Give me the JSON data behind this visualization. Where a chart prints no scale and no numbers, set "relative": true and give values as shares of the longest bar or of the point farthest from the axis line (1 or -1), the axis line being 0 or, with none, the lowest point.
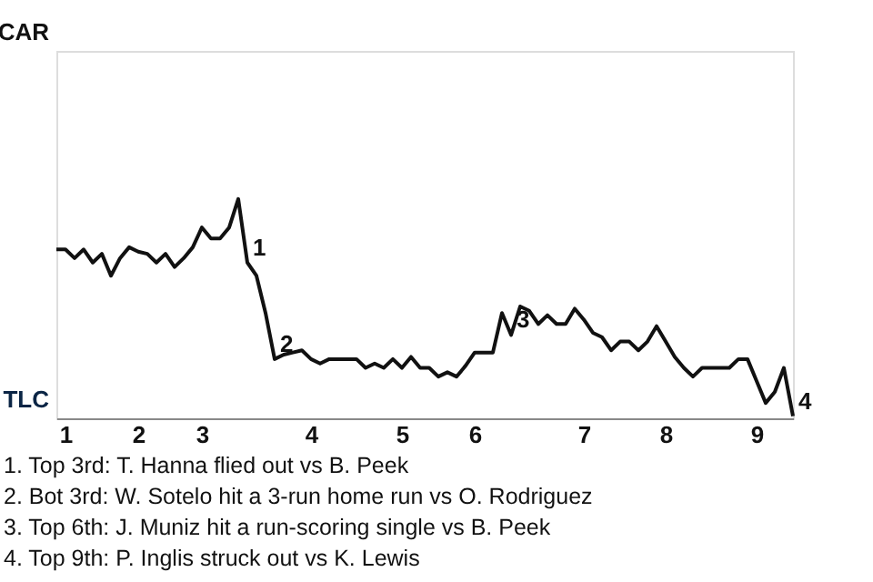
{
  "chart_data": {
    "type": "line",
    "relative": true,
    "categories": [
      null,
      "1",
      null,
      null,
      null,
      null,
      null,
      null,
      null,
      "2",
      null,
      null,
      null,
      null,
      null,
      null,
      "3",
      null,
      null,
      null,
      null,
      null,
      null,
      null,
      null,
      null,
      null,
      null,
      "4",
      null,
      null,
      null,
      null,
      null,
      null,
      null,
      null,
      null,
      "5",
      null,
      null,
      null,
      null,
      null,
      null,
      null,
      "6",
      null,
      null,
      null,
      null,
      null,
      null,
      null,
      null,
      null,
      null,
      null,
      "7",
      null,
      null,
      null,
      null,
      null,
      null,
      null,
      null,
      "8",
      null,
      null,
      null,
      null,
      null,
      null,
      null,
      null,
      null,
      "9",
      null,
      null,
      null,
      null
    ],
    "series": [
      {
        "color": "#111111",
        "values": [
          0.77,
          0.77,
          0.73,
          0.77,
          0.71,
          0.75,
          0.65,
          0.73,
          0.78,
          0.76,
          0.75,
          0.71,
          0.75,
          0.69,
          0.73,
          0.78,
          0.87,
          0.82,
          0.82,
          0.87,
          1,
          0.71,
          0.65,
          0.48,
          0.27,
          0.29,
          0.3,
          0.31,
          0.27,
          0.25,
          0.27,
          0.27,
          0.27,
          0.27,
          0.23,
          0.25,
          0.23,
          0.27,
          0.23,
          0.28,
          0.23,
          0.23,
          0.19,
          0.21,
          0.19,
          0.24,
          0.3,
          0.3,
          0.3,
          0.48,
          0.38,
          0.51,
          0.49,
          0.43,
          0.47,
          0.43,
          0.43,
          0.5,
          0.45,
          0.39,
          0.37,
          0.31,
          0.35,
          0.35,
          0.31,
          0.35,
          0.42,
          0.35,
          0.28,
          0.23,
          0.19,
          0.23,
          0.23,
          0.23,
          0.23,
          0.27,
          0.27,
          0.17,
          0.07,
          0.12,
          0.23,
          0.01
        ]
      }
    ],
    "marker": "none",
    "line_style": "solid",
    "annotations": [
      "1",
      "2",
      "3",
      "4",
      "CAR",
      "TLC",
      "1. Top 3rd: T. Hanna flied out vs B. Peek",
      "2. Bot 3rd: W. Sotelo hit a 3-run home run vs O. Rodriguez",
      "3. Top 6th: J. Muniz hit a run-scoring single vs B. Peek",
      "4. Top 9th: P. Inglis struck out vs K. Lewis"
    ]
  }
}
